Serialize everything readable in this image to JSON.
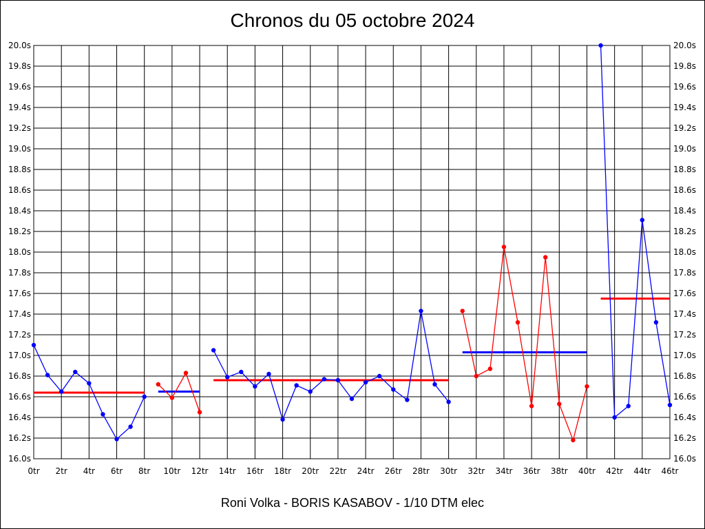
{
  "chart_data": {
    "type": "line",
    "title": "Chronos du 05 octobre 2024",
    "subtitle": "Roni Volka - BORIS KASABOV - 1/10 DTM elec",
    "ylim": [
      16.0,
      20.0
    ],
    "xlim": [
      0,
      46
    ],
    "yticks": [
      "16.0s",
      "16.2s",
      "16.4s",
      "16.6s",
      "16.8s",
      "17.0s",
      "17.2s",
      "17.4s",
      "17.6s",
      "17.8s",
      "18.0s",
      "18.2s",
      "18.4s",
      "18.6s",
      "18.8s",
      "19.0s",
      "19.2s",
      "19.4s",
      "19.6s",
      "19.8s",
      "20.0s"
    ],
    "xticks": [
      "0tr",
      "2tr",
      "4tr",
      "6tr",
      "8tr",
      "10tr",
      "12tr",
      "14tr",
      "16tr",
      "18tr",
      "20tr",
      "22tr",
      "24tr",
      "26tr",
      "28tr",
      "30tr",
      "32tr",
      "34tr",
      "36tr",
      "38tr",
      "40tr",
      "42tr",
      "44tr",
      "46tr"
    ],
    "grid": true,
    "series": [
      {
        "color": "#0000ff",
        "points": [
          [
            0,
            17.1
          ],
          [
            1,
            16.81
          ],
          [
            2,
            16.65
          ],
          [
            3,
            16.84
          ],
          [
            4,
            16.73
          ],
          [
            5,
            16.43
          ],
          [
            6,
            16.19
          ],
          [
            7,
            16.31
          ],
          [
            8,
            16.6
          ]
        ]
      },
      {
        "color": "#ff0000",
        "points": [
          [
            9,
            16.72
          ],
          [
            10,
            16.59
          ],
          [
            11,
            16.83
          ],
          [
            12,
            16.45
          ]
        ]
      },
      {
        "color": "#0000ff",
        "points": [
          [
            13,
            17.05
          ],
          [
            14,
            16.79
          ],
          [
            15,
            16.84
          ],
          [
            16,
            16.7
          ],
          [
            17,
            16.82
          ],
          [
            18,
            16.38
          ],
          [
            19,
            16.71
          ],
          [
            20,
            16.65
          ],
          [
            21,
            16.77
          ],
          [
            22,
            16.76
          ],
          [
            23,
            16.58
          ],
          [
            24,
            16.74
          ],
          [
            25,
            16.8
          ],
          [
            26,
            16.67
          ],
          [
            27,
            16.57
          ],
          [
            28,
            17.43
          ],
          [
            29,
            16.72
          ],
          [
            30,
            16.55
          ]
        ]
      },
      {
        "color": "#ff0000",
        "points": [
          [
            31,
            17.43
          ],
          [
            32,
            16.8
          ],
          [
            33,
            16.87
          ],
          [
            34,
            18.05
          ],
          [
            35,
            17.32
          ],
          [
            36,
            16.51
          ],
          [
            37,
            17.95
          ],
          [
            38,
            16.53
          ],
          [
            39,
            16.18
          ],
          [
            40,
            16.7
          ]
        ]
      },
      {
        "color": "#0000ff",
        "points": [
          [
            41,
            20.0
          ],
          [
            42,
            16.4
          ],
          [
            43,
            16.51
          ],
          [
            44,
            18.31
          ],
          [
            45,
            17.32
          ],
          [
            46,
            16.52
          ]
        ]
      }
    ],
    "averages": [
      {
        "color": "#ff0000",
        "x0": 0,
        "x1": 8,
        "value": 16.64
      },
      {
        "color": "#0000ff",
        "x0": 9,
        "x1": 12,
        "value": 16.65
      },
      {
        "color": "#ff0000",
        "x0": 13,
        "x1": 30,
        "value": 16.76
      },
      {
        "color": "#0000ff",
        "x0": 31,
        "x1": 40,
        "value": 17.03
      },
      {
        "color": "#ff0000",
        "x0": 41,
        "x1": 46,
        "value": 17.55
      }
    ]
  }
}
